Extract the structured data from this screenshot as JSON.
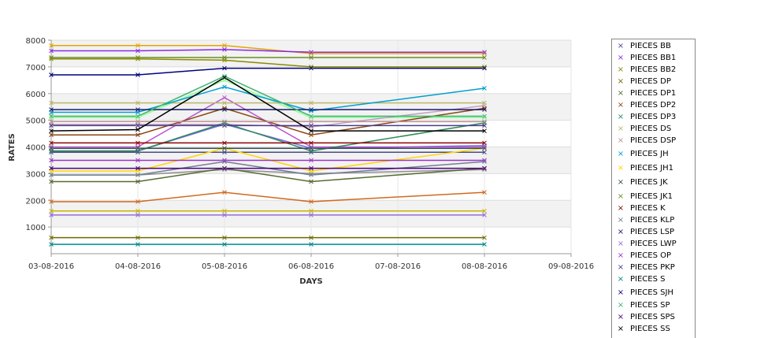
{
  "chart_data": {
    "type": "line",
    "title": "",
    "xlabel": "DAYS",
    "ylabel": "RATES",
    "ylim": [
      0,
      8000
    ],
    "yticks": [
      "1000",
      "2000",
      "3000",
      "4000",
      "5000",
      "6000",
      "7000",
      "8000"
    ],
    "categories": [
      "03-08-2016",
      "04-08-2016",
      "05-08-2016",
      "06-08-2016",
      "07-08-2016",
      "08-08-2016",
      "09-08-2016"
    ],
    "grid": true,
    "legend_position": "right",
    "series": [
      {
        "name": "PIECES BB",
        "color": "#4a4a8a",
        "values": [
          3800,
          3800,
          3800,
          3800,
          null,
          3800,
          null
        ]
      },
      {
        "name": "PIECES BB1",
        "color": "#8a2be2",
        "values": [
          7600,
          7600,
          7650,
          7550,
          null,
          7550,
          null
        ]
      },
      {
        "name": "PIECES BB2",
        "color": "#8b8b00",
        "values": [
          7300,
          7300,
          7250,
          7000,
          null,
          7000,
          null
        ]
      },
      {
        "name": "PIECES DP",
        "color": "#6b6b00",
        "values": [
          600,
          600,
          600,
          600,
          null,
          600,
          null
        ]
      },
      {
        "name": "PIECES DP1",
        "color": "#556b2f",
        "values": [
          2700,
          2700,
          3200,
          2700,
          null,
          3200,
          null
        ]
      },
      {
        "name": "PIECES DP2",
        "color": "#8b4513",
        "values": [
          4450,
          4450,
          5450,
          4450,
          null,
          5450,
          null
        ]
      },
      {
        "name": "PIECES DP3",
        "color": "#2e8b57",
        "values": [
          3850,
          3850,
          4900,
          3850,
          null,
          4900,
          null
        ]
      },
      {
        "name": "PIECES DS",
        "color": "#bdb76b",
        "values": [
          5650,
          5650,
          5650,
          5650,
          null,
          5650,
          null
        ]
      },
      {
        "name": "PIECES DSP",
        "color": "#bc8f8f",
        "values": [
          4950,
          4950,
          4950,
          4950,
          null,
          4950,
          null
        ]
      },
      {
        "name": "PIECES JH",
        "color": "#00a0d0",
        "values": [
          5300,
          5300,
          6250,
          5350,
          null,
          6200,
          null
        ]
      },
      {
        "name": "PIECES JH1",
        "color": "#ffd700",
        "values": [
          3100,
          3100,
          3950,
          3100,
          null,
          3950,
          null
        ]
      },
      {
        "name": "PIECES JK",
        "color": "#2f4f4f",
        "values": [
          3950,
          3950,
          3950,
          3950,
          null,
          3950,
          null
        ]
      },
      {
        "name": "PIECES JK1",
        "color": "#6b8e23",
        "values": [
          7350,
          7350,
          7350,
          7350,
          null,
          7350,
          null
        ]
      },
      {
        "name": "PIECES K",
        "color": "#8b0000",
        "values": [
          4150,
          4150,
          4150,
          4150,
          null,
          4150,
          null
        ]
      },
      {
        "name": "PIECES KLP",
        "color": "#708090",
        "values": [
          2950,
          2950,
          3450,
          2950,
          null,
          3450,
          null
        ]
      },
      {
        "name": "PIECES LSP",
        "color": "#191970",
        "values": [
          5400,
          5400,
          5400,
          5400,
          null,
          5400,
          null
        ]
      },
      {
        "name": "PIECES LWP",
        "color": "#9370db",
        "values": [
          1450,
          1450,
          1450,
          1450,
          null,
          1450,
          null
        ]
      },
      {
        "name": "PIECES OP",
        "color": "#9932cc",
        "values": [
          3500,
          3500,
          3500,
          3500,
          null,
          3500,
          null
        ]
      },
      {
        "name": "PIECES PKP",
        "color": "#483d8b",
        "values": [
          4800,
          4800,
          4800,
          4800,
          null,
          4800,
          null
        ]
      },
      {
        "name": "PIECES S",
        "color": "#008b8b",
        "values": [
          350,
          350,
          350,
          350,
          null,
          350,
          null
        ]
      },
      {
        "name": "PIECES SJH",
        "color": "#000080",
        "values": [
          6700,
          6700,
          6950,
          6950,
          null,
          6950,
          null
        ]
      },
      {
        "name": "PIECES SP",
        "color": "#3cb371",
        "values": [
          5150,
          5150,
          6650,
          5150,
          null,
          5150,
          null
        ]
      },
      {
        "name": "PIECES SPS",
        "color": "#4b0082",
        "values": [
          3200,
          3200,
          3200,
          3200,
          null,
          3200,
          null
        ]
      },
      {
        "name": "PIECES SS",
        "color": "#000000",
        "values": [
          4600,
          4650,
          6600,
          4600,
          null,
          4600,
          null
        ]
      }
    ],
    "extra_lines": [
      {
        "color": "#e3a600",
        "values": [
          7800,
          7800,
          7800,
          7500,
          null,
          7500,
          null
        ]
      },
      {
        "color": "#d2691e",
        "values": [
          1950,
          1950,
          2300,
          1950,
          null,
          2300,
          null
        ]
      },
      {
        "color": "#c8b400",
        "values": [
          1600,
          1600,
          1600,
          1600,
          null,
          1600,
          null
        ]
      },
      {
        "color": "#7b68ee",
        "values": [
          3850,
          3850,
          4850,
          3950,
          null,
          4050,
          null
        ]
      },
      {
        "color": "#ba55d3",
        "values": [
          4000,
          4000,
          5850,
          4000,
          null,
          4000,
          null
        ]
      },
      {
        "color": "#98fb98",
        "values": [
          5100,
          5100,
          6500,
          5100,
          null,
          5100,
          null
        ]
      },
      {
        "color": "#c0a0c0",
        "values": [
          4850,
          4850,
          4850,
          4750,
          null,
          5550,
          null
        ]
      },
      {
        "color": "#8f8f8f",
        "values": [
          2950,
          2950,
          3150,
          3000,
          null,
          3150,
          null
        ]
      }
    ]
  }
}
